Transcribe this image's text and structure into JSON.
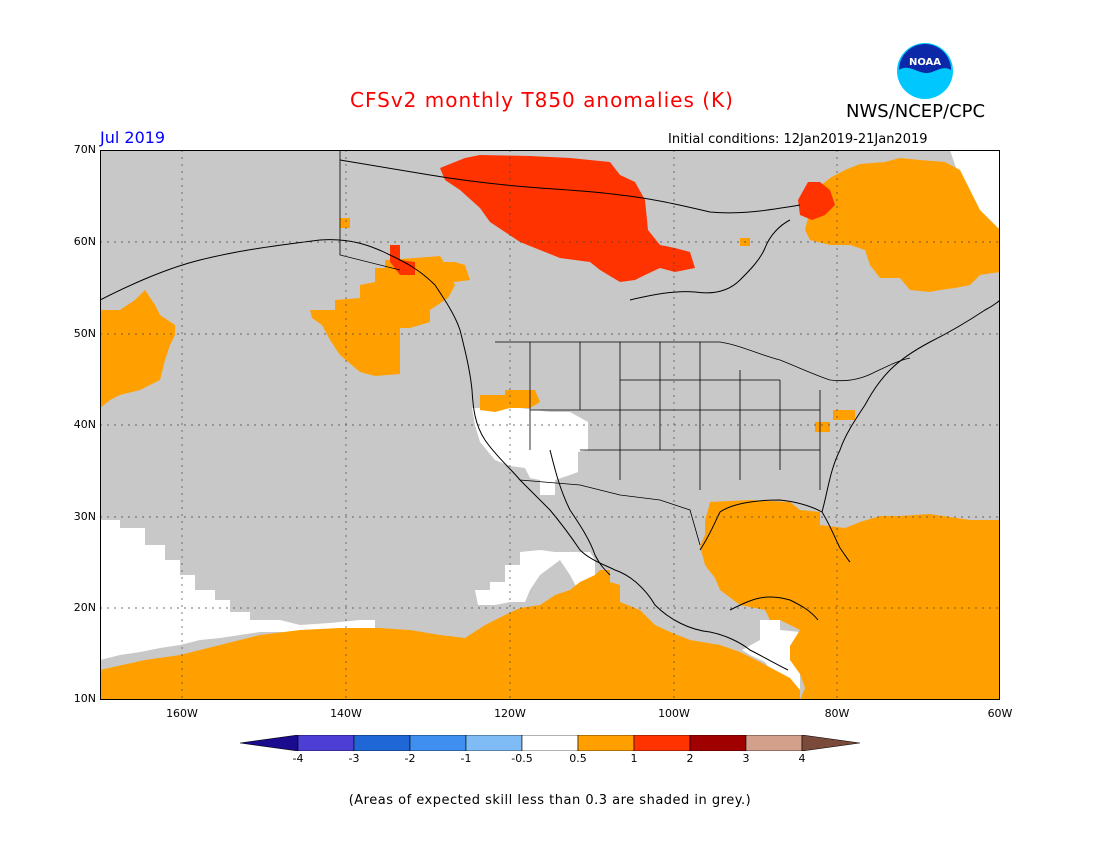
{
  "header": {
    "title": "CFSv2 monthly T850 anomalies (K)",
    "org": "NWS/NCEP/CPC",
    "logo_text": "NOAA",
    "month": "Jul 2019",
    "initial_conditions": "Initial conditions: 12Jan2019-21Jan2019"
  },
  "axes": {
    "lat_labels": [
      "70N",
      "60N",
      "50N",
      "40N",
      "30N",
      "20N",
      "10N"
    ],
    "lon_labels": [
      "160W",
      "140W",
      "120W",
      "100W",
      "80W",
      "60W"
    ]
  },
  "colorbar": {
    "labels": [
      "-4",
      "-3",
      "-2",
      "-1",
      "-0.5",
      "0.5",
      "1",
      "2",
      "3",
      "4"
    ],
    "colors": [
      "#1a0b8f",
      "#4d3fd6",
      "#1f66d6",
      "#3f8ff0",
      "#7fbcf6",
      "#ffffff",
      "#ffa000",
      "#ff3300",
      "#a00000",
      "#d3a08c",
      "#7a4a3a"
    ]
  },
  "legend_colors": {
    "grey_no_skill": "#c8c8c8",
    "anomaly_0_5_to_1": "#ffa000",
    "anomaly_1_to_2": "#ff3300",
    "near_zero": "#ffffff"
  },
  "footer": "(Areas of expected skill less than 0.3 are shaded in grey.)"
}
